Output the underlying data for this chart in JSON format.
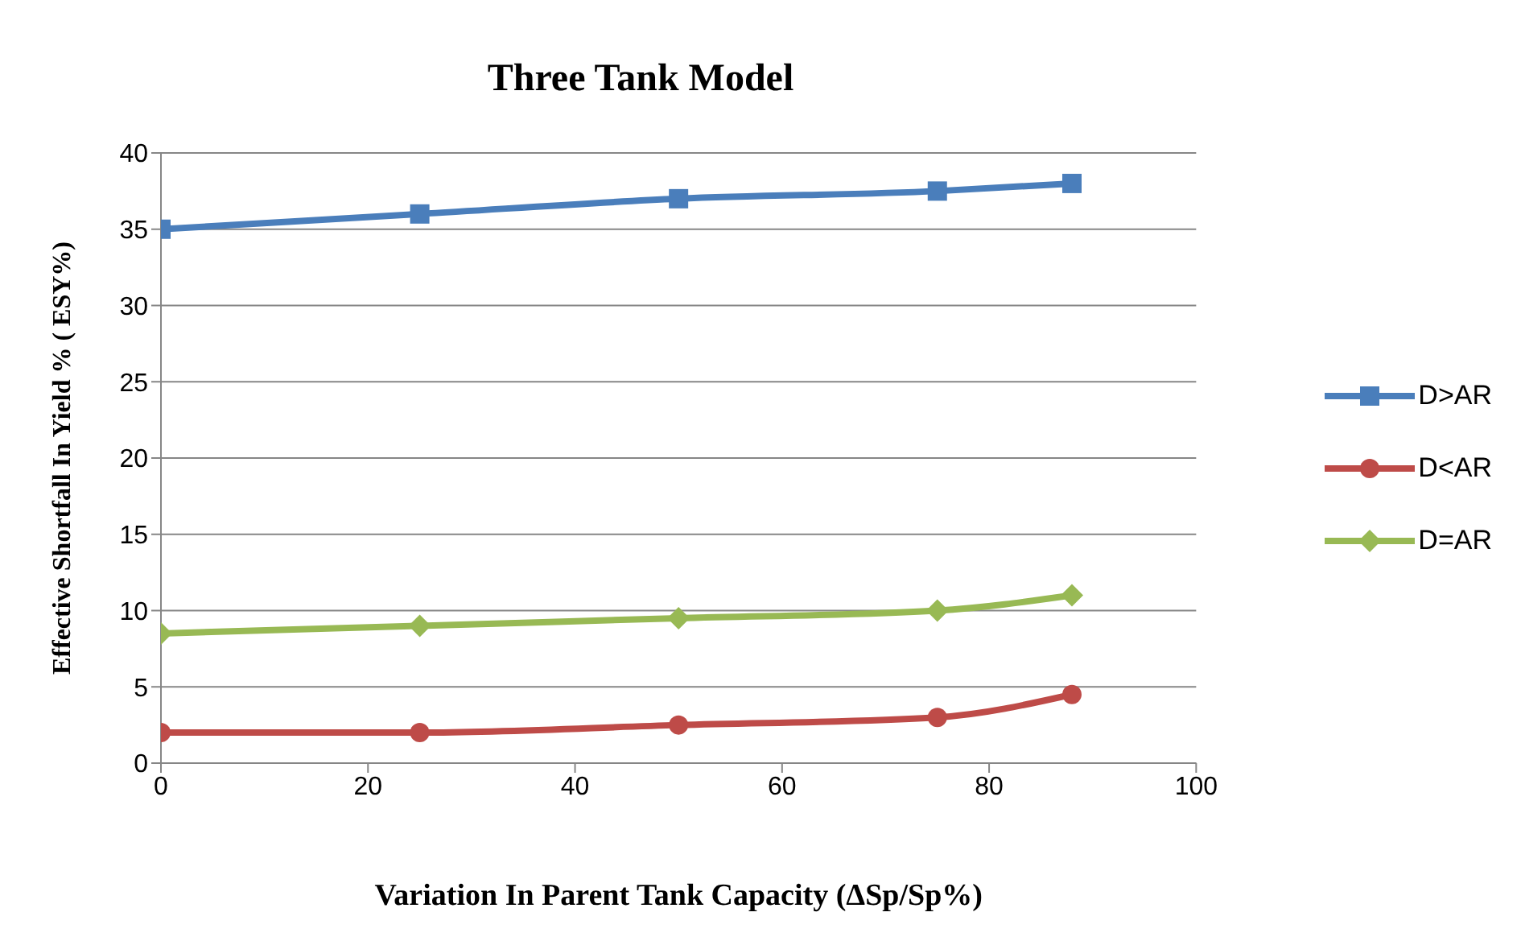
{
  "chart_data": {
    "type": "line",
    "title": "Three Tank Model",
    "xlabel": "Variation In Parent Tank Capacity (ΔSp/Sp%)",
    "ylabel": "Effective Shortfall In Yield % ( ESY%)",
    "x": [
      0,
      25,
      50,
      75,
      88
    ],
    "series": [
      {
        "name": "D>AR",
        "color": "#4a7ebb",
        "marker": "square",
        "values": [
          35,
          36,
          37,
          37.5,
          38
        ]
      },
      {
        "name": "D<AR",
        "color": "#be4b48",
        "marker": "circle",
        "values": [
          2,
          2,
          2.5,
          3,
          4.5
        ]
      },
      {
        "name": "D=AR",
        "color": "#98b954",
        "marker": "diamond",
        "values": [
          8.5,
          9,
          9.5,
          10,
          11
        ]
      }
    ],
    "xlim": [
      0,
      100
    ],
    "xticks": [
      0,
      20,
      40,
      60,
      80,
      100
    ],
    "ylim": [
      0,
      40
    ],
    "yticks": [
      0,
      5,
      10,
      15,
      20,
      25,
      30,
      35,
      40
    ],
    "grid": "y",
    "legend": "right",
    "line_style": "solid"
  }
}
